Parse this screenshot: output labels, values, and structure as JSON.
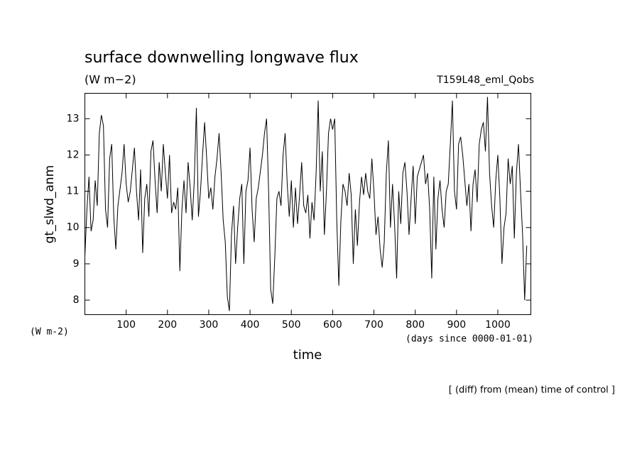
{
  "chart_data": {
    "type": "line",
    "title": "surface downwelling longwave flux",
    "units": "(W m−2)",
    "experiment": "T159L48_eml_Qobs",
    "y_label": "gt_slwd_anm",
    "y_units_label": "(W m-2)",
    "x_label": "time",
    "x_units_label": "(days since 0000-01-01)",
    "footnote": "[ (diff) from (mean) time of control ]",
    "color": "#000000",
    "xlim": [
      0,
      1080
    ],
    "xticks": [
      100,
      200,
      300,
      400,
      500,
      600,
      700,
      800,
      900,
      1000
    ],
    "ylim": [
      7.6,
      13.7
    ],
    "yticks": [
      8,
      9,
      10,
      11,
      12,
      13
    ],
    "x": [
      0,
      5,
      10,
      15,
      20,
      25,
      30,
      35,
      40,
      45,
      50,
      55,
      60,
      65,
      70,
      75,
      80,
      90,
      95,
      100,
      105,
      110,
      120,
      125,
      130,
      135,
      140,
      145,
      150,
      155,
      160,
      165,
      170,
      175,
      180,
      185,
      190,
      195,
      200,
      205,
      210,
      215,
      220,
      225,
      230,
      235,
      240,
      245,
      250,
      255,
      260,
      265,
      270,
      275,
      280,
      285,
      290,
      295,
      300,
      305,
      310,
      315,
      320,
      325,
      330,
      335,
      340,
      345,
      350,
      355,
      360,
      365,
      370,
      375,
      380,
      385,
      390,
      395,
      400,
      405,
      410,
      415,
      420,
      430,
      435,
      440,
      445,
      450,
      455,
      460,
      465,
      470,
      475,
      480,
      485,
      490,
      495,
      500,
      505,
      510,
      515,
      520,
      525,
      530,
      535,
      540,
      545,
      550,
      555,
      560,
      565,
      570,
      575,
      580,
      585,
      590,
      595,
      600,
      605,
      610,
      615,
      620,
      625,
      630,
      635,
      640,
      645,
      650,
      655,
      660,
      665,
      670,
      675,
      680,
      685,
      690,
      695,
      700,
      705,
      710,
      715,
      720,
      725,
      730,
      735,
      740,
      745,
      750,
      755,
      760,
      765,
      770,
      775,
      780,
      785,
      790,
      795,
      800,
      805,
      810,
      815,
      820,
      825,
      830,
      835,
      840,
      845,
      850,
      855,
      860,
      865,
      870,
      875,
      880,
      885,
      890,
      895,
      900,
      905,
      910,
      915,
      920,
      925,
      930,
      935,
      940,
      945,
      950,
      955,
      960,
      965,
      970,
      975,
      980,
      985,
      990,
      995,
      1000,
      1005,
      1010,
      1015,
      1020,
      1025,
      1030,
      1035,
      1040,
      1045,
      1050,
      1055,
      1060,
      1065,
      1070
    ],
    "values": [
      9.2,
      10.5,
      11.4,
      9.9,
      10.2,
      11.3,
      10.6,
      12.6,
      13.1,
      12.8,
      10.5,
      10.0,
      11.9,
      12.3,
      10.3,
      9.4,
      10.6,
      11.5,
      12.3,
      11.2,
      10.7,
      11.0,
      12.2,
      11.0,
      10.2,
      11.6,
      9.3,
      10.8,
      11.2,
      10.3,
      12.1,
      12.4,
      11.3,
      10.4,
      11.8,
      11.0,
      12.3,
      11.5,
      10.8,
      12.0,
      10.4,
      10.7,
      10.5,
      11.1,
      8.8,
      10.5,
      11.3,
      10.4,
      11.8,
      11.1,
      10.2,
      11.3,
      13.3,
      10.3,
      11.0,
      12.0,
      12.9,
      11.9,
      10.8,
      11.1,
      10.5,
      11.4,
      11.9,
      12.6,
      11.5,
      10.2,
      9.6,
      8.1,
      7.7,
      9.8,
      10.6,
      9.0,
      10.0,
      10.8,
      11.2,
      9.0,
      11.0,
      11.3,
      12.2,
      10.5,
      9.6,
      10.8,
      11.1,
      12.0,
      12.6,
      13.0,
      11.0,
      8.3,
      7.9,
      9.2,
      10.8,
      11.0,
      10.6,
      12.0,
      12.6,
      11.2,
      10.3,
      11.3,
      10.0,
      11.1,
      10.1,
      10.9,
      11.8,
      10.6,
      10.4,
      10.9,
      9.7,
      10.7,
      10.2,
      11.5,
      13.5,
      11.0,
      12.1,
      9.8,
      11.0,
      12.6,
      13.0,
      12.7,
      13.0,
      10.2,
      8.4,
      10.2,
      11.2,
      11.0,
      10.6,
      11.5,
      10.9,
      9.0,
      10.5,
      9.5,
      10.7,
      11.4,
      10.9,
      11.5,
      11.0,
      10.8,
      11.9,
      11.0,
      9.8,
      10.3,
      9.4,
      8.9,
      9.6,
      11.5,
      12.4,
      10.0,
      11.2,
      10.1,
      8.6,
      11.0,
      10.1,
      11.5,
      11.8,
      11.0,
      9.8,
      10.8,
      11.7,
      10.1,
      11.4,
      11.6,
      11.8,
      12.0,
      11.2,
      11.5,
      10.5,
      8.6,
      11.4,
      9.4,
      10.8,
      11.3,
      10.5,
      10.0,
      11.0,
      11.2,
      12.3,
      13.5,
      11.0,
      10.5,
      12.3,
      12.5,
      12.0,
      11.3,
      10.6,
      11.2,
      9.9,
      11.2,
      11.6,
      10.7,
      12.3,
      12.7,
      12.9,
      12.1,
      13.6,
      11.5,
      10.6,
      10.0,
      11.3,
      12.0,
      10.8,
      9.0,
      10.0,
      10.4,
      11.9,
      11.2,
      11.7,
      9.7,
      11.5,
      12.3,
      11.0,
      9.8,
      8.0,
      9.5
    ]
  }
}
